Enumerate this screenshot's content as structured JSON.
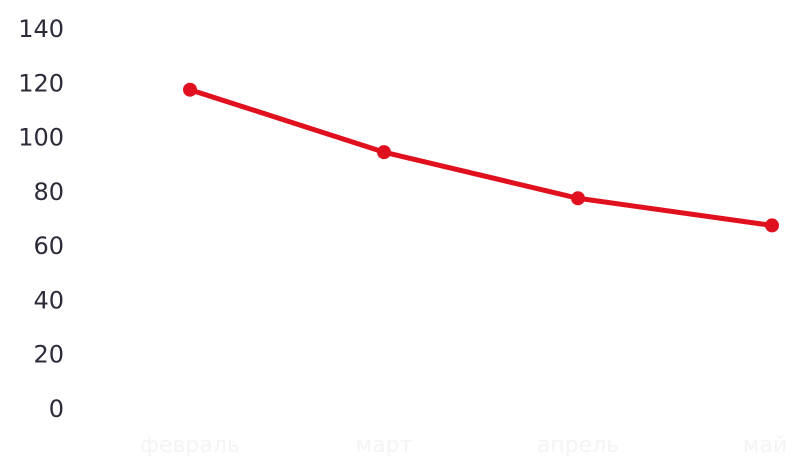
{
  "chart_data": {
    "type": "line",
    "categories": [
      "февраль",
      "март",
      "апрель",
      "май"
    ],
    "series": [
      {
        "values": [
          118,
          95,
          78,
          68
        ]
      }
    ],
    "ylim": [
      0,
      140
    ],
    "yticks": [
      "0",
      "20",
      "40",
      "60",
      "80",
      "100",
      "120",
      "140"
    ],
    "grid": false,
    "legend": "none",
    "colors": {
      "line": "#e0101e",
      "ytick_text": "#2b2b3a",
      "xtick_text": "#f4f4f6"
    }
  }
}
